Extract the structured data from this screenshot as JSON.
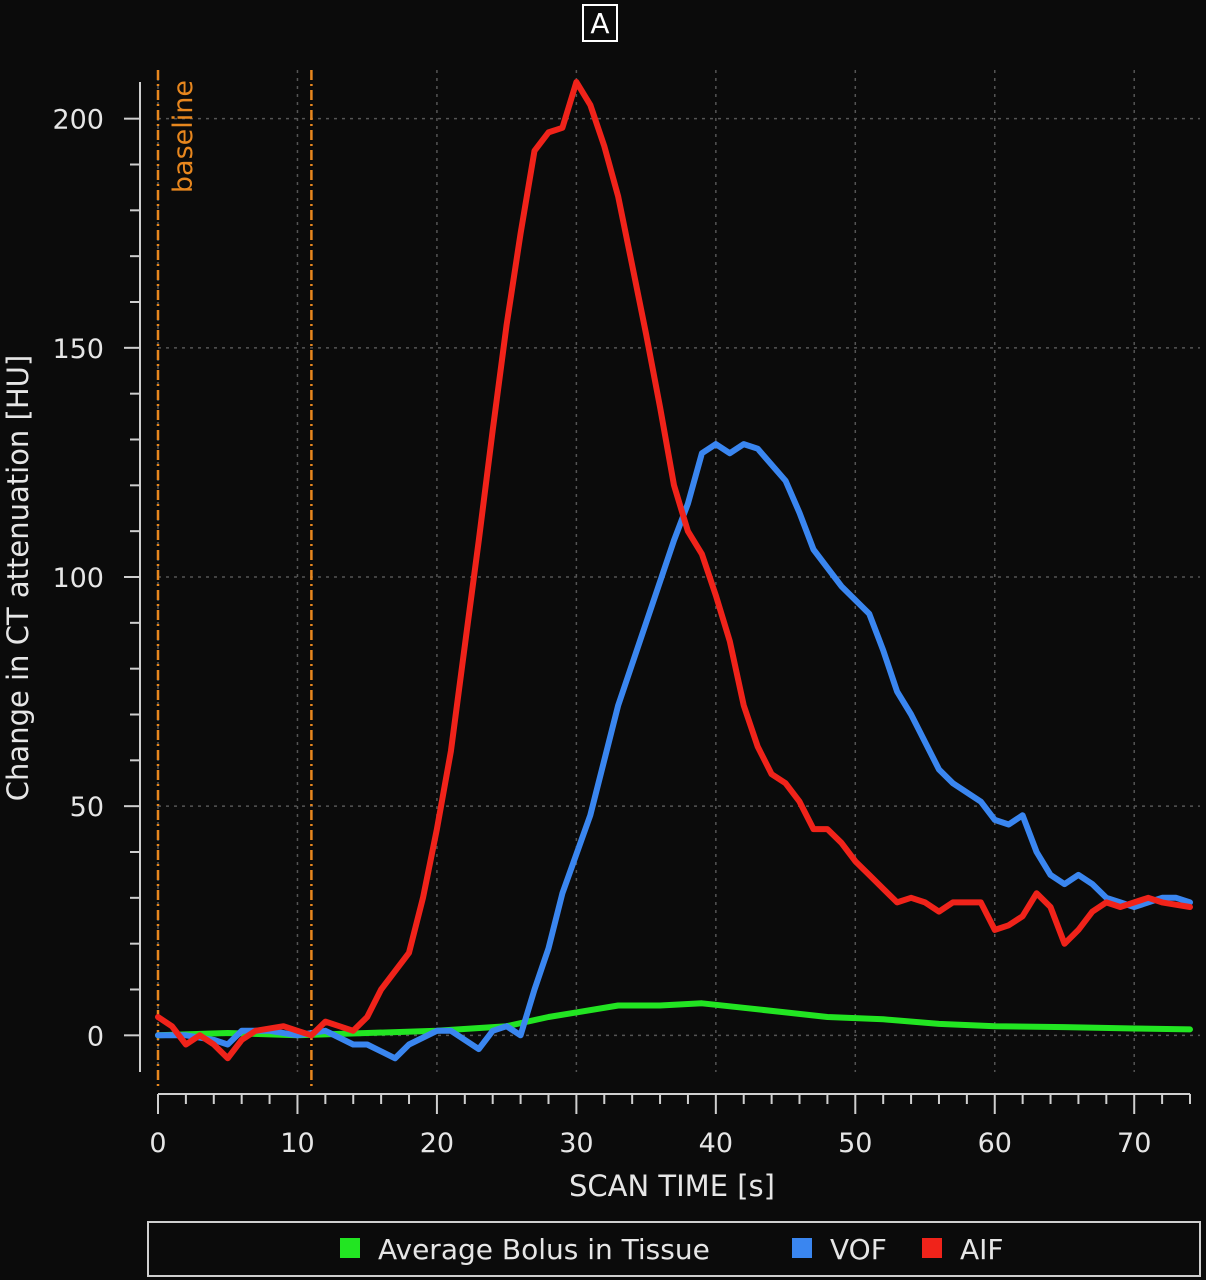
{
  "panel_label": "A",
  "chart_data": {
    "type": "line",
    "xlabel": "SCAN TIME [s]",
    "ylabel": "Change in CT attenuation [HU]",
    "xlim": [
      0,
      74
    ],
    "ylim": [
      -8,
      208
    ],
    "x_ticks": [
      0,
      10,
      20,
      30,
      40,
      50,
      60,
      70
    ],
    "y_ticks": [
      0,
      50,
      100,
      150,
      200
    ],
    "grid": true,
    "legend_position": "bottom",
    "annotations": [
      {
        "text": "baseline",
        "x": 0
      }
    ],
    "vertical_lines": [
      0,
      11
    ],
    "series": [
      {
        "name": "Average Bolus in Tissue",
        "color": "#22e522",
        "points": [
          [
            0,
            0
          ],
          [
            5,
            0.5
          ],
          [
            10,
            0
          ],
          [
            15,
            0.5
          ],
          [
            20,
            1
          ],
          [
            25,
            2
          ],
          [
            28,
            4
          ],
          [
            30,
            5
          ],
          [
            33,
            6.5
          ],
          [
            36,
            6.5
          ],
          [
            39,
            7
          ],
          [
            42,
            6
          ],
          [
            45,
            5
          ],
          [
            48,
            4
          ],
          [
            52,
            3.5
          ],
          [
            56,
            2.5
          ],
          [
            60,
            2
          ],
          [
            65,
            1.8
          ],
          [
            70,
            1.5
          ],
          [
            74,
            1.3
          ]
        ]
      },
      {
        "name": "VOF",
        "color": "#3a86f0",
        "points": [
          [
            0,
            0
          ],
          [
            2,
            0
          ],
          [
            4,
            -1
          ],
          [
            5,
            -2
          ],
          [
            6,
            1
          ],
          [
            8,
            1
          ],
          [
            10,
            0
          ],
          [
            12,
            1
          ],
          [
            14,
            -2
          ],
          [
            15,
            -2
          ],
          [
            17,
            -5
          ],
          [
            18,
            -2
          ],
          [
            20,
            1
          ],
          [
            21,
            1
          ],
          [
            23,
            -3
          ],
          [
            24,
            1
          ],
          [
            25,
            2
          ],
          [
            26,
            0
          ],
          [
            27,
            10
          ],
          [
            28,
            19
          ],
          [
            29,
            31
          ],
          [
            31,
            48
          ],
          [
            33,
            72
          ],
          [
            35,
            90
          ],
          [
            37,
            108
          ],
          [
            38,
            116
          ],
          [
            39,
            127
          ],
          [
            40,
            129
          ],
          [
            41,
            127
          ],
          [
            42,
            129
          ],
          [
            43,
            128
          ],
          [
            45,
            121
          ],
          [
            46,
            114
          ],
          [
            47,
            106
          ],
          [
            48,
            102
          ],
          [
            49,
            98
          ],
          [
            51,
            92
          ],
          [
            52,
            84
          ],
          [
            53,
            75
          ],
          [
            54,
            70
          ],
          [
            56,
            58
          ],
          [
            57,
            55
          ],
          [
            59,
            51
          ],
          [
            60,
            47
          ],
          [
            61,
            46
          ],
          [
            62,
            48
          ],
          [
            63,
            40
          ],
          [
            64,
            35
          ],
          [
            65,
            33
          ],
          [
            66,
            35
          ],
          [
            67,
            33
          ],
          [
            68,
            30
          ],
          [
            69,
            29
          ],
          [
            70,
            28
          ],
          [
            71,
            29
          ],
          [
            72,
            30
          ],
          [
            73,
            30
          ],
          [
            74,
            29
          ]
        ]
      },
      {
        "name": "AIF",
        "color": "#f0231a",
        "points": [
          [
            0,
            4
          ],
          [
            1,
            2
          ],
          [
            2,
            -2
          ],
          [
            3,
            0
          ],
          [
            4,
            -2
          ],
          [
            5,
            -5
          ],
          [
            6,
            -1
          ],
          [
            7,
            1
          ],
          [
            9,
            2
          ],
          [
            10,
            1
          ],
          [
            11,
            0
          ],
          [
            12,
            3
          ],
          [
            13,
            2
          ],
          [
            14,
            1
          ],
          [
            15,
            4
          ],
          [
            16,
            10
          ],
          [
            18,
            18
          ],
          [
            19,
            30
          ],
          [
            20,
            45
          ],
          [
            21,
            62
          ],
          [
            22,
            85
          ],
          [
            23,
            108
          ],
          [
            24,
            132
          ],
          [
            25,
            155
          ],
          [
            26,
            175
          ],
          [
            27,
            193
          ],
          [
            28,
            197
          ],
          [
            29,
            198
          ],
          [
            30,
            208
          ],
          [
            31,
            203
          ],
          [
            32,
            194
          ],
          [
            33,
            183
          ],
          [
            34,
            168
          ],
          [
            35,
            153
          ],
          [
            36,
            137
          ],
          [
            37,
            120
          ],
          [
            38,
            110
          ],
          [
            39,
            105
          ],
          [
            40,
            96
          ],
          [
            41,
            86
          ],
          [
            42,
            72
          ],
          [
            43,
            63
          ],
          [
            44,
            57
          ],
          [
            45,
            55
          ],
          [
            46,
            51
          ],
          [
            47,
            45
          ],
          [
            48,
            45
          ],
          [
            49,
            42
          ],
          [
            50,
            38
          ],
          [
            51,
            35
          ],
          [
            52,
            32
          ],
          [
            53,
            29
          ],
          [
            54,
            30
          ],
          [
            55,
            29
          ],
          [
            56,
            27
          ],
          [
            57,
            29
          ],
          [
            58,
            29
          ],
          [
            59,
            29
          ],
          [
            60,
            23
          ],
          [
            61,
            24
          ],
          [
            62,
            26
          ],
          [
            63,
            31
          ],
          [
            64,
            28
          ],
          [
            65,
            20
          ],
          [
            66,
            23
          ],
          [
            67,
            27
          ],
          [
            68,
            29
          ],
          [
            69,
            28
          ],
          [
            70,
            29
          ],
          [
            71,
            30
          ],
          [
            72,
            29
          ],
          [
            74,
            28
          ]
        ]
      }
    ]
  }
}
